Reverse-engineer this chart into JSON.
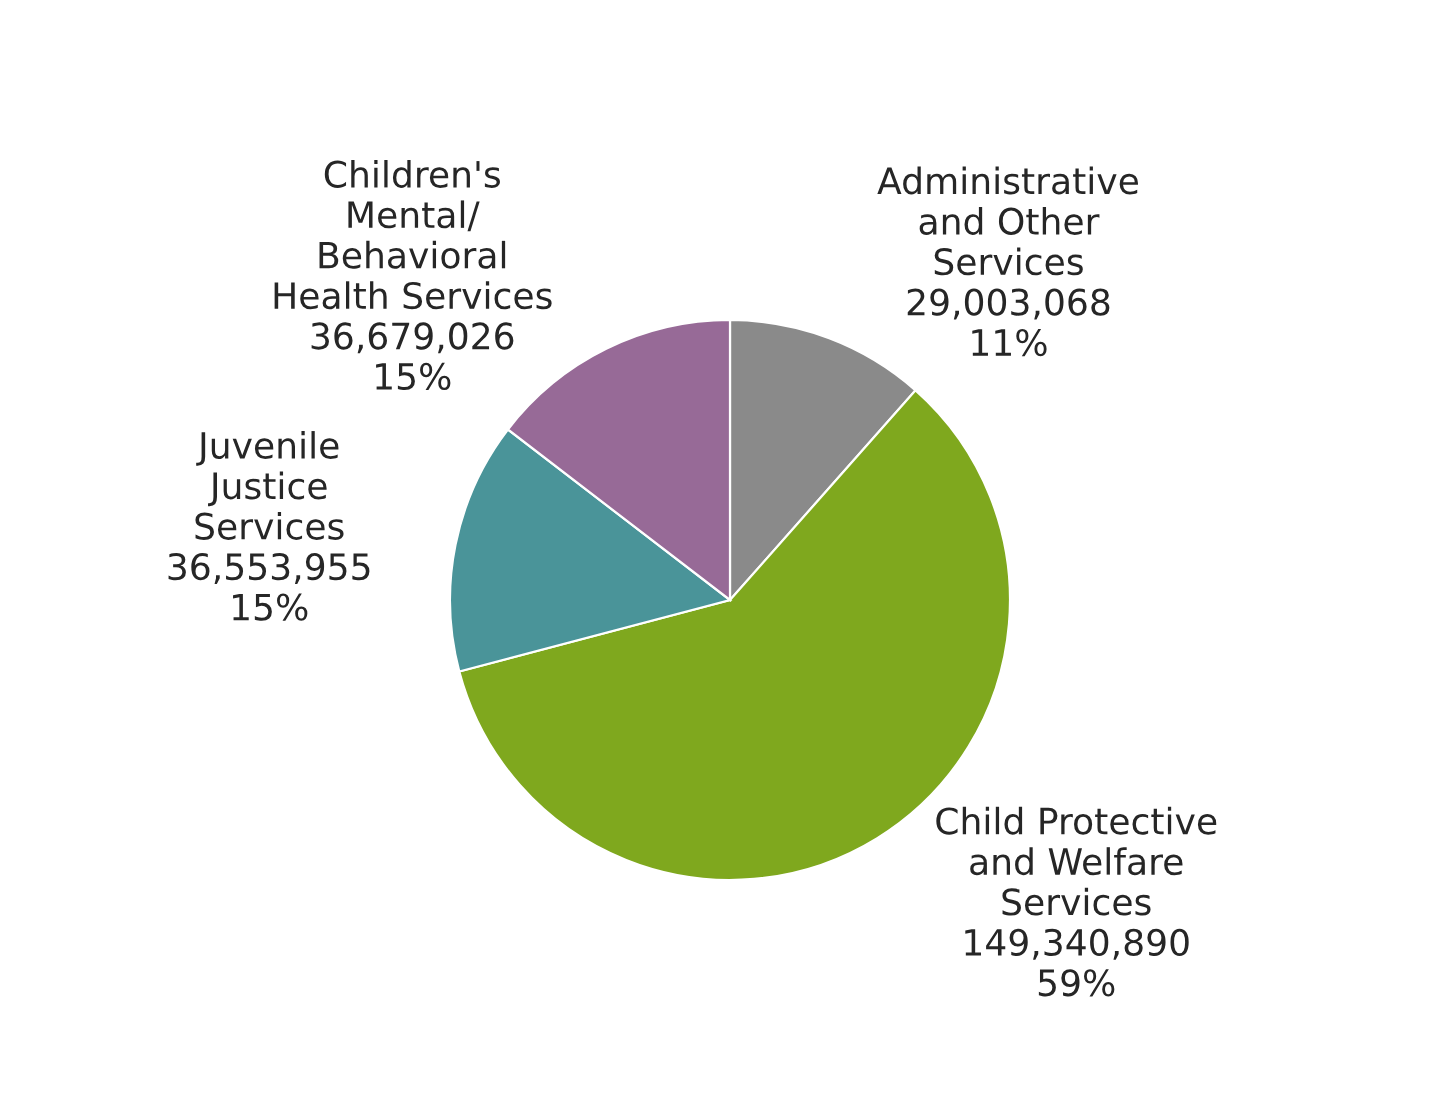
{
  "chart_data": {
    "type": "pie",
    "categories": [
      "Administrative\nand Other\nServices",
      "Child Protective\nand Welfare\nServices",
      "Juvenile\nJustice\nServices",
      "Children's\nMental/\nBehavioral\nHealth Services"
    ],
    "values": [
      29003068,
      149340890,
      36553955,
      36679026
    ],
    "value_labels": [
      "29,003,068\n11%",
      "149,340,890\n59%",
      "36,553,955\n15%",
      "36,679,026\n15%"
    ],
    "colors": [
      "#8a8a8a",
      "#7fa81e",
      "#4a9499",
      "#976a97"
    ]
  }
}
